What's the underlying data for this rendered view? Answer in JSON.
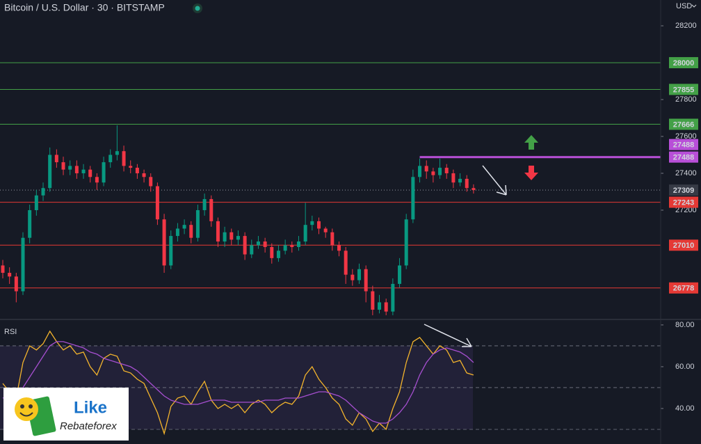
{
  "chart_data": {
    "type": "candlestick",
    "title": "Bitcoin / U.S. Dollar · 30 · BITSTAMP",
    "currency": "USD",
    "ylim": [
      26611,
      28340
    ],
    "yticks": [
      28200,
      27800,
      27600,
      27400,
      27200
    ],
    "up_color": "#089981",
    "down_color": "#f23645",
    "candles": [
      [
        26900,
        26930,
        26830,
        26860
      ],
      [
        26860,
        26890,
        26800,
        26840
      ],
      [
        26840,
        26860,
        26700,
        26760
      ],
      [
        26760,
        27080,
        26740,
        27050
      ],
      [
        27050,
        27230,
        27020,
        27200
      ],
      [
        27200,
        27310,
        27170,
        27280
      ],
      [
        27280,
        27350,
        27250,
        27320
      ],
      [
        27320,
        27540,
        27300,
        27500
      ],
      [
        27500,
        27530,
        27430,
        27460
      ],
      [
        27460,
        27490,
        27390,
        27420
      ],
      [
        27420,
        27470,
        27390,
        27440
      ],
      [
        27440,
        27470,
        27370,
        27400
      ],
      [
        27400,
        27450,
        27370,
        27420
      ],
      [
        27420,
        27440,
        27350,
        27380
      ],
      [
        27380,
        27400,
        27310,
        27350
      ],
      [
        27350,
        27490,
        27330,
        27460
      ],
      [
        27460,
        27530,
        27430,
        27500
      ],
      [
        27500,
        27660,
        27470,
        27520
      ],
      [
        27520,
        27550,
        27410,
        27440
      ],
      [
        27440,
        27470,
        27400,
        27430
      ],
      [
        27430,
        27450,
        27370,
        27400
      ],
      [
        27400,
        27420,
        27350,
        27380
      ],
      [
        27380,
        27400,
        27300,
        27330
      ],
      [
        27330,
        27350,
        27120,
        27150
      ],
      [
        27150,
        27180,
        26860,
        26900
      ],
      [
        26900,
        27090,
        26880,
        27060
      ],
      [
        27060,
        27130,
        27030,
        27100
      ],
      [
        27100,
        27150,
        27070,
        27120
      ],
      [
        27120,
        27140,
        27020,
        27050
      ],
      [
        27050,
        27230,
        27030,
        27200
      ],
      [
        27200,
        27290,
        27170,
        27260
      ],
      [
        27260,
        27280,
        27110,
        27140
      ],
      [
        27140,
        27160,
        27000,
        27030
      ],
      [
        27030,
        27110,
        27000,
        27080
      ],
      [
        27080,
        27100,
        27010,
        27040
      ],
      [
        27040,
        27090,
        27010,
        27060
      ],
      [
        27060,
        27080,
        26930,
        26960
      ],
      [
        26960,
        27040,
        26940,
        27010
      ],
      [
        27010,
        27060,
        26990,
        27030
      ],
      [
        27030,
        27050,
        26970,
        27000
      ],
      [
        27000,
        27020,
        26910,
        26940
      ],
      [
        26940,
        27010,
        26920,
        26980
      ],
      [
        26980,
        27040,
        26960,
        27010
      ],
      [
        27010,
        27030,
        26970,
        27000
      ],
      [
        27000,
        27060,
        26980,
        27030
      ],
      [
        27030,
        27240,
        27010,
        27120
      ],
      [
        27120,
        27170,
        27090,
        27140
      ],
      [
        27140,
        27160,
        27070,
        27100
      ],
      [
        27100,
        27110,
        27050,
        27080
      ],
      [
        27080,
        27100,
        26980,
        27010
      ],
      [
        27010,
        27030,
        26950,
        26980
      ],
      [
        26980,
        27000,
        26800,
        26850
      ],
      [
        26850,
        26880,
        26790,
        26820
      ],
      [
        26820,
        26910,
        26800,
        26880
      ],
      [
        26880,
        26900,
        26700,
        26760
      ],
      [
        26760,
        26790,
        26630,
        26660
      ],
      [
        26660,
        26740,
        26640,
        26700
      ],
      [
        26700,
        26720,
        26630,
        26650
      ],
      [
        26650,
        26830,
        26630,
        26800
      ],
      [
        26800,
        26940,
        26780,
        26900
      ],
      [
        26900,
        27180,
        26880,
        27150
      ],
      [
        27150,
        27420,
        27130,
        27380
      ],
      [
        27380,
        27480,
        27350,
        27440
      ],
      [
        27440,
        27470,
        27370,
        27410
      ],
      [
        27410,
        27430,
        27350,
        27390
      ],
      [
        27390,
        27480,
        27370,
        27430
      ],
      [
        27430,
        27450,
        27370,
        27400
      ],
      [
        27400,
        27420,
        27320,
        27350
      ],
      [
        27350,
        27400,
        27330,
        27370
      ],
      [
        27370,
        27390,
        27300,
        27320
      ],
      [
        27320,
        27340,
        27290,
        27309
      ]
    ],
    "last_price": 27309,
    "levels": [
      {
        "value": 28000,
        "color": "#43a047"
      },
      {
        "value": 27855,
        "color": "#43a047"
      },
      {
        "value": 27666,
        "color": "#43a047"
      },
      {
        "value": 27488,
        "color": "#b84fd8",
        "style": "ray"
      },
      {
        "value": 27488,
        "color": "#b84fd8",
        "style": "ray"
      },
      {
        "value": 27243,
        "color": "#e53935"
      },
      {
        "value": 27010,
        "color": "#e53935"
      },
      {
        "value": 26778,
        "color": "#e53935"
      }
    ],
    "rsi": {
      "title": "RSI",
      "ylim": [
        23,
        82.3
      ],
      "yticks": [
        {
          "value": 80,
          "label": "80.00"
        },
        {
          "value": 60,
          "label": "60.00"
        },
        {
          "value": 40,
          "label": "40.00"
        }
      ],
      "bands": [
        70,
        50,
        30
      ],
      "series": [
        {
          "color": "#f5b52c",
          "values": [
            52,
            48,
            45,
            62,
            70,
            68,
            71,
            77,
            72,
            68,
            70,
            66,
            67,
            60,
            56,
            64,
            66,
            65,
            58,
            57,
            54,
            52,
            45,
            38,
            28,
            41,
            45,
            46,
            42,
            48,
            53,
            44,
            40,
            42,
            40,
            42,
            38,
            42,
            44,
            42,
            38,
            41,
            43,
            42,
            46,
            56,
            60,
            54,
            50,
            45,
            42,
            35,
            32,
            38,
            35,
            29,
            33,
            30,
            40,
            48,
            62,
            72,
            74,
            70,
            66,
            70,
            68,
            62,
            63,
            57,
            56
          ]
        },
        {
          "color": "#a64fd0",
          "values": [
            45,
            46,
            46,
            50,
            55,
            60,
            65,
            70,
            72,
            72,
            71,
            70,
            69,
            67,
            66,
            64,
            63,
            62,
            61,
            60,
            58,
            55,
            52,
            49,
            46,
            44,
            43,
            42,
            42,
            42,
            43,
            44,
            44,
            44,
            43,
            43,
            43,
            43,
            43,
            44,
            44,
            44,
            45,
            45,
            45,
            46,
            47,
            48,
            48,
            47,
            46,
            44,
            41,
            38,
            36,
            34,
            33,
            33,
            35,
            38,
            42,
            48,
            56,
            62,
            66,
            68,
            69,
            68,
            67,
            65,
            62
          ]
        }
      ]
    }
  },
  "logo": {
    "line1": "Like",
    "line2": "Rebateforex"
  }
}
